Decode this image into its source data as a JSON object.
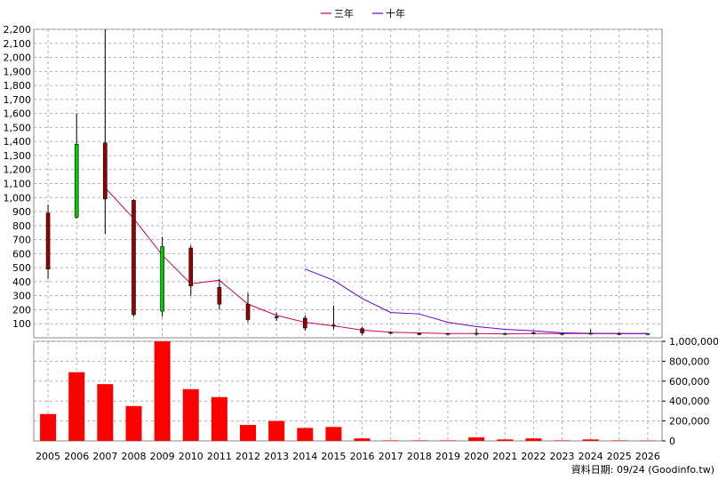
{
  "chart_data": {
    "type": "candlestick-with-volume",
    "title": "",
    "years": [
      "2005",
      "2006",
      "2007",
      "2008",
      "2009",
      "2010",
      "2011",
      "2012",
      "2013",
      "2014",
      "2015",
      "2016",
      "2017",
      "2018",
      "2019",
      "2020",
      "2021",
      "2022",
      "2023",
      "2024",
      "2025",
      "2026"
    ],
    "price_axis": {
      "ylim": [
        0,
        2200
      ],
      "ticks": [
        100,
        200,
        300,
        400,
        500,
        600,
        700,
        800,
        900,
        1000,
        1100,
        1200,
        1300,
        1400,
        1500,
        1600,
        1700,
        1800,
        1900,
        2000,
        2100,
        2200
      ],
      "tick_labels": [
        "100",
        "200",
        "300",
        "400",
        "500",
        "600",
        "700",
        "800",
        "900",
        "1,000",
        "1,100",
        "1,200",
        "1,300",
        "1,400",
        "1,500",
        "1,600",
        "1,700",
        "1,800",
        "1,900",
        "2,000",
        "2,100",
        "2,200"
      ]
    },
    "volume_axis": {
      "ylim": [
        0,
        1000000
      ],
      "ticks": [
        0,
        200000,
        400000,
        600000,
        800000,
        1000000
      ],
      "tick_labels": [
        "0",
        "200,000",
        "400,000",
        "600,000",
        "800,000",
        "1,000,000"
      ]
    },
    "candles": [
      {
        "year": "2005",
        "open": 890,
        "close": 490,
        "high": 950,
        "low": 420
      },
      {
        "year": "2006",
        "open": 860,
        "close": 1380,
        "high": 1600,
        "low": 850
      },
      {
        "year": "2007",
        "open": 1390,
        "close": 990,
        "high": 2200,
        "low": 740
      },
      {
        "year": "2008",
        "open": 980,
        "close": 165,
        "high": 990,
        "low": 150
      },
      {
        "year": "2009",
        "open": 190,
        "close": 650,
        "high": 720,
        "low": 150
      },
      {
        "year": "2010",
        "open": 640,
        "close": 370,
        "high": 660,
        "low": 300
      },
      {
        "year": "2011",
        "open": 360,
        "close": 240,
        "high": 420,
        "low": 200
      },
      {
        "year": "2012",
        "open": 240,
        "close": 130,
        "high": 320,
        "low": 110
      },
      {
        "year": "2013",
        "open": 150,
        "close": 145,
        "high": 180,
        "low": 120
      },
      {
        "year": "2014",
        "open": 140,
        "close": 70,
        "high": 160,
        "low": 50
      },
      {
        "year": "2015",
        "open": 90,
        "close": 85,
        "high": 230,
        "low": 60
      },
      {
        "year": "2016",
        "open": 65,
        "close": 35,
        "high": 80,
        "low": 20
      },
      {
        "year": "2017",
        "open": 38,
        "close": 35,
        "high": 45,
        "low": 28
      },
      {
        "year": "2018",
        "open": 30,
        "close": 28,
        "high": 35,
        "low": 20
      },
      {
        "year": "2019",
        "open": 30,
        "close": 28,
        "high": 35,
        "low": 22
      },
      {
        "year": "2020",
        "open": 30,
        "close": 32,
        "high": 65,
        "low": 15
      },
      {
        "year": "2021",
        "open": 30,
        "close": 30,
        "high": 38,
        "low": 25
      },
      {
        "year": "2022",
        "open": 35,
        "close": 30,
        "high": 45,
        "low": 28
      },
      {
        "year": "2023",
        "open": 30,
        "close": 30,
        "high": 35,
        "low": 25
      },
      {
        "year": "2024",
        "open": 30,
        "close": 32,
        "high": 60,
        "low": 25
      },
      {
        "year": "2025",
        "open": 30,
        "close": 28,
        "high": 40,
        "low": 20
      },
      {
        "year": "2026",
        "open": 30,
        "close": 30,
        "high": 32,
        "low": 28
      }
    ],
    "series": [
      {
        "name": "三年",
        "color": "#cc0066",
        "x": [
          "2007",
          "2008",
          "2009",
          "2010",
          "2011",
          "2012",
          "2013",
          "2014",
          "2015",
          "2016",
          "2017",
          "2018",
          "2019",
          "2020",
          "2021",
          "2022",
          "2023",
          "2024",
          "2025",
          "2026"
        ],
        "values": [
          1070,
          850,
          590,
          385,
          410,
          240,
          160,
          110,
          85,
          55,
          40,
          35,
          30,
          30,
          28,
          30,
          30,
          30,
          30,
          30
        ]
      },
      {
        "name": "十年",
        "color": "#6600cc",
        "x": [
          "2014",
          "2015",
          "2016",
          "2017",
          "2018",
          "2019",
          "2020",
          "2021",
          "2022",
          "2023",
          "2024",
          "2025",
          "2026"
        ],
        "values": [
          490,
          410,
          280,
          180,
          170,
          110,
          80,
          60,
          50,
          35,
          32,
          30,
          30
        ]
      }
    ],
    "volume": {
      "color": "#ff0000",
      "x": [
        "2005",
        "2006",
        "2007",
        "2008",
        "2009",
        "2010",
        "2011",
        "2012",
        "2013",
        "2014",
        "2015",
        "2016",
        "2017",
        "2018",
        "2019",
        "2020",
        "2021",
        "2022",
        "2023",
        "2024",
        "2025",
        "2026"
      ],
      "values": [
        270000,
        690000,
        570000,
        350000,
        1060000,
        520000,
        440000,
        160000,
        200000,
        130000,
        140000,
        25000,
        5000,
        5000,
        5000,
        35000,
        15000,
        25000,
        5000,
        15000,
        5000,
        3000
      ]
    },
    "legend_position": "top-center",
    "grid": true,
    "footer": "資料日期: 09/24  (Goodinfo.tw)"
  }
}
